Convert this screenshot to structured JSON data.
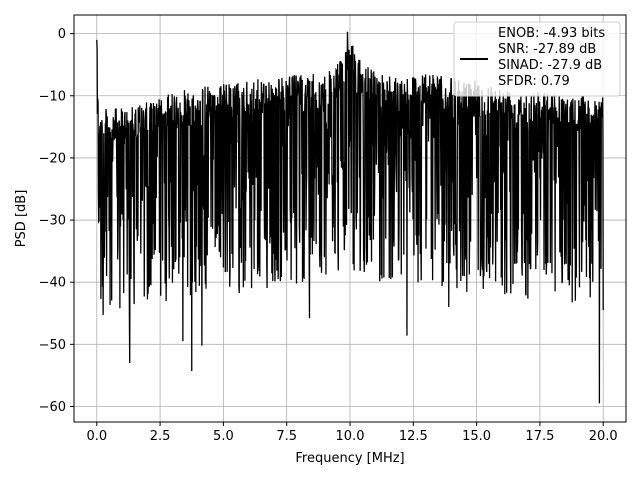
{
  "chart_data": {
    "type": "line",
    "xlabel": "Frequency [MHz]",
    "ylabel": "PSD [dB]",
    "xlim": [
      -0.9,
      20.9
    ],
    "ylim": [
      -62.5,
      3
    ],
    "xticks": [
      0.0,
      2.5,
      5.0,
      7.5,
      10.0,
      12.5,
      15.0,
      17.5,
      20.0
    ],
    "xtick_labels": [
      "0.0",
      "2.5",
      "5.0",
      "7.5",
      "10.0",
      "12.5",
      "15.0",
      "17.5",
      "20.0"
    ],
    "yticks": [
      0,
      -10,
      -20,
      -30,
      -40,
      -50,
      -60
    ],
    "ytick_labels": [
      "0",
      "−10",
      "−20",
      "−30",
      "−40",
      "−50",
      "−60"
    ],
    "grid": true,
    "legend_position": "top-right",
    "series": [
      {
        "name": "ENOB: -4.93 bits\nSNR: -27.89 dB\nSINAD: -27.9 dB\nSFDR: 0.79",
        "color": "#000000",
        "x_range": [
          0,
          20
        ],
        "envelope": {
          "x": [
            0,
            0.1,
            0.5,
            1,
            2,
            3,
            4,
            5,
            6,
            7,
            8,
            9,
            9.5,
            9.8,
            10,
            10.3,
            11,
            12,
            13,
            14,
            15,
            16,
            17,
            18,
            19,
            20
          ],
          "upper": [
            -1,
            -12,
            -12,
            -12,
            -11,
            -9.5,
            -8.5,
            -8,
            -7.5,
            -7,
            -6.5,
            -6.5,
            -5,
            -2.5,
            -0.5,
            -4,
            -6,
            -6.5,
            -6.5,
            -7,
            -7.5,
            -8.5,
            -8.5,
            -9.5,
            -10,
            -10
          ],
          "typical_low": [
            -30,
            -37,
            -40,
            -40,
            -38,
            -37,
            -36,
            -36,
            -36,
            -35,
            -35,
            -34,
            -33,
            -32,
            -32,
            -33,
            -34,
            -35,
            -35,
            -35,
            -36,
            -36,
            -37,
            -37,
            -38,
            -38
          ]
        },
        "features": [
          {
            "x": 0,
            "y": -1
          },
          {
            "x": 9.9,
            "y": 0.3
          },
          {
            "x": 19.85,
            "y": -59.5
          },
          {
            "x": 3.75,
            "y": -54.3
          },
          {
            "x": 1.3,
            "y": -53
          },
          {
            "x": 4.15,
            "y": -50.2
          },
          {
            "x": 3.4,
            "y": -49.5
          },
          {
            "x": 8.4,
            "y": -45.8
          },
          {
            "x": 0.25,
            "y": -45.3
          },
          {
            "x": 13.9,
            "y": -44
          },
          {
            "x": 12.25,
            "y": -48.6
          },
          {
            "x": 20.0,
            "y": -44.5
          }
        ]
      }
    ]
  }
}
